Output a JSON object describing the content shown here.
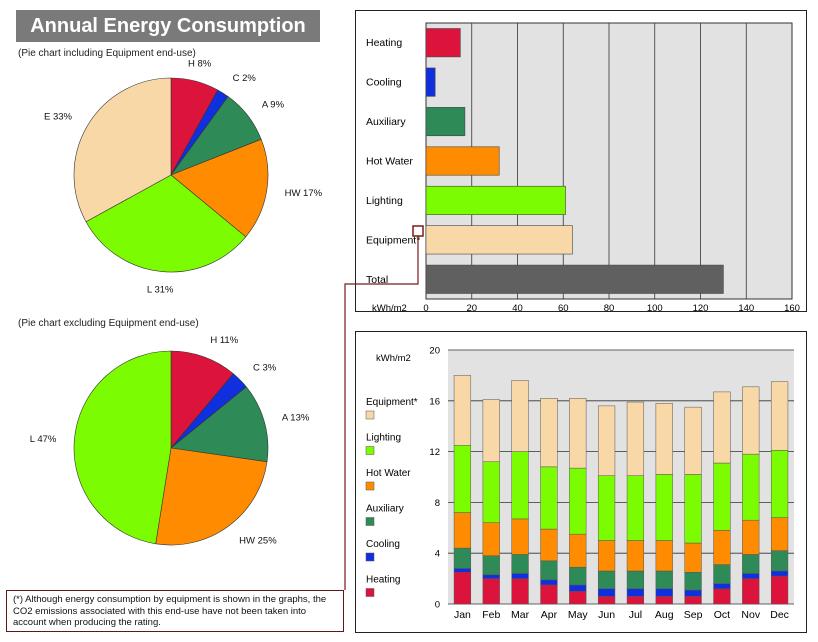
{
  "title": "Annual Energy Consumption",
  "pie1": {
    "caption": "(Pie chart including Equipment end-use)",
    "slices": [
      {
        "label": "H 8%",
        "value": 8,
        "color": "#dc143c"
      },
      {
        "label": "C 2%",
        "value": 2,
        "color": "#1030e0"
      },
      {
        "label": "A 9%",
        "value": 9,
        "color": "#2e8b57"
      },
      {
        "label": "HW 17%",
        "value": 17,
        "color": "#ff8c00"
      },
      {
        "label": "L 31%",
        "value": 31,
        "color": "#7cfc00"
      },
      {
        "label": "E 33%",
        "value": 33,
        "color": "#f9d8a8"
      }
    ]
  },
  "pie2": {
    "caption": "(Pie chart excluding Equipment end-use)",
    "slices": [
      {
        "label": "H 11%",
        "value": 11,
        "color": "#dc143c"
      },
      {
        "label": "C 3%",
        "value": 3,
        "color": "#1030e0"
      },
      {
        "label": "A 13%",
        "value": 13,
        "color": "#2e8b57"
      },
      {
        "label": "HW 25%",
        "value": 25,
        "color": "#ff8c00"
      },
      {
        "label": "L 47%",
        "value": 47,
        "color": "#7cfc00"
      }
    ]
  },
  "hbar": {
    "unit_label": "kWh/m2",
    "categories": [
      "Heating",
      "Cooling",
      "Auxiliary",
      "Hot Water",
      "Lighting",
      "Equipment*",
      "Total"
    ],
    "values": [
      15,
      4,
      17,
      32,
      61,
      64,
      130
    ],
    "colors": [
      "#dc143c",
      "#1030e0",
      "#2e8b57",
      "#ff8c00",
      "#7cfc00",
      "#f9d8a8",
      "#606060"
    ],
    "xticks": [
      "0",
      "20",
      "40",
      "60",
      "80",
      "100",
      "120",
      "140",
      "160"
    ],
    "xlim": [
      0,
      160
    ]
  },
  "monthly": {
    "unit_label": "kWh/m2",
    "months": [
      "Jan",
      "Feb",
      "Mar",
      "Apr",
      "May",
      "Jun",
      "Jul",
      "Aug",
      "Sep",
      "Oct",
      "Nov",
      "Dec"
    ],
    "yticks": [
      "0",
      "4",
      "8",
      "12",
      "16",
      "20"
    ],
    "ylim": [
      0,
      20
    ],
    "legend": [
      {
        "name": "Equipment*",
        "color": "#f9d8a8"
      },
      {
        "name": "Lighting",
        "color": "#7cfc00"
      },
      {
        "name": "Hot Water",
        "color": "#ff8c00"
      },
      {
        "name": "Auxiliary",
        "color": "#2e8b57"
      },
      {
        "name": "Cooling",
        "color": "#1030e0"
      },
      {
        "name": "Heating",
        "color": "#dc143c"
      }
    ]
  },
  "chart_data": [
    {
      "type": "pie",
      "title": "(Pie chart including Equipment end-use)",
      "categories": [
        "H",
        "C",
        "A",
        "HW",
        "L",
        "E"
      ],
      "values": [
        8,
        2,
        9,
        17,
        31,
        33
      ]
    },
    {
      "type": "pie",
      "title": "(Pie chart excluding Equipment end-use)",
      "categories": [
        "H",
        "C",
        "A",
        "HW",
        "L"
      ],
      "values": [
        11,
        3,
        13,
        25,
        47
      ]
    },
    {
      "type": "bar",
      "orientation": "horizontal",
      "xlabel": "kWh/m2",
      "categories": [
        "Heating",
        "Cooling",
        "Auxiliary",
        "Hot Water",
        "Lighting",
        "Equipment*",
        "Total"
      ],
      "values": [
        15,
        4,
        17,
        32,
        61,
        64,
        130
      ],
      "xlim": [
        0,
        160
      ],
      "grid": true
    },
    {
      "type": "bar",
      "stacked": true,
      "ylabel": "kWh/m2",
      "ylim": [
        0,
        20
      ],
      "grid": true,
      "legend": "left",
      "categories": [
        "Jan",
        "Feb",
        "Mar",
        "Apr",
        "May",
        "Jun",
        "Jul",
        "Aug",
        "Sep",
        "Oct",
        "Nov",
        "Dec"
      ],
      "series": [
        {
          "name": "Heating",
          "values": [
            2.5,
            2.0,
            2.0,
            1.5,
            1.0,
            0.6,
            0.6,
            0.6,
            0.6,
            1.2,
            2.0,
            2.2
          ]
        },
        {
          "name": "Cooling",
          "values": [
            0.3,
            0.3,
            0.4,
            0.4,
            0.5,
            0.6,
            0.6,
            0.6,
            0.5,
            0.4,
            0.4,
            0.4
          ]
        },
        {
          "name": "Auxiliary",
          "values": [
            1.6,
            1.5,
            1.5,
            1.5,
            1.4,
            1.4,
            1.4,
            1.4,
            1.4,
            1.5,
            1.5,
            1.6
          ]
        },
        {
          "name": "Hot Water",
          "values": [
            2.8,
            2.6,
            2.8,
            2.5,
            2.6,
            2.4,
            2.4,
            2.4,
            2.3,
            2.7,
            2.7,
            2.6
          ]
        },
        {
          "name": "Lighting",
          "values": [
            5.3,
            4.8,
            5.3,
            4.9,
            5.2,
            5.1,
            5.1,
            5.2,
            5.4,
            5.3,
            5.2,
            5.3
          ]
        },
        {
          "name": "Equipment*",
          "values": [
            5.5,
            4.9,
            5.6,
            5.4,
            5.5,
            5.5,
            5.8,
            5.6,
            5.3,
            5.6,
            5.3,
            5.4
          ]
        }
      ]
    }
  ],
  "footnote": "(*) Although energy consumption by equipment is shown in the graphs, the CO2 emissions associated with this end-use have not been taken into account when producing the rating."
}
